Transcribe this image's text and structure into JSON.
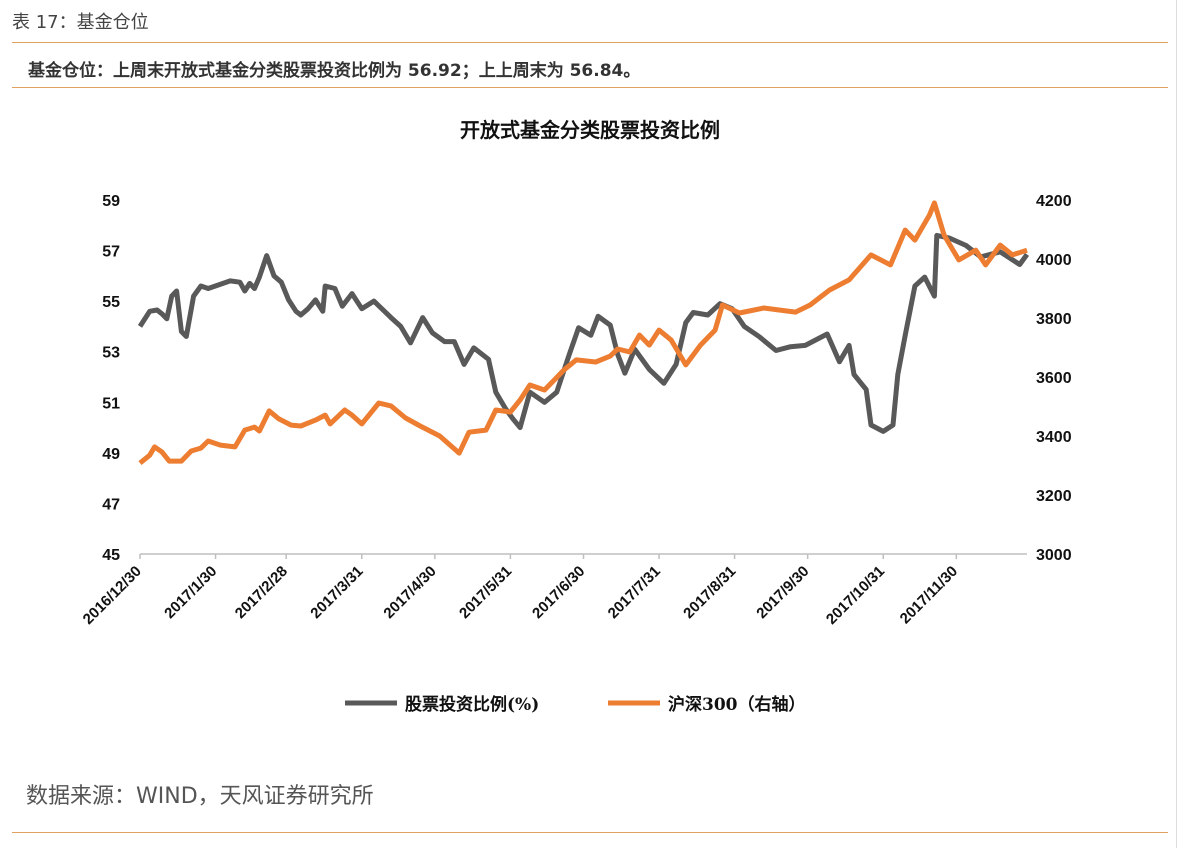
{
  "caption": "表 17：基金仓位",
  "summary": "基金仓位：上周末开放式基金分类股票投资比例为 56.92；上上周末为 56.84。",
  "source": "数据来源：WIND，天风证券研究所",
  "chart_data": {
    "type": "line",
    "title": "开放式基金分类股票投资比例",
    "x_tick_labels": [
      "2016/12/30",
      "2017/1/30",
      "2017/2/28",
      "2017/3/31",
      "2017/4/30",
      "2017/5/31",
      "2017/6/30",
      "2017/7/31",
      "2017/8/31",
      "2017/9/30",
      "2017/10/31",
      "2017/11/30"
    ],
    "xlim": [
      "2016-12-30",
      "2017-12-29"
    ],
    "y_left": {
      "ylim": [
        45,
        59
      ],
      "ticks": [
        45,
        47,
        49,
        51,
        53,
        55,
        57,
        59
      ]
    },
    "y_right": {
      "ylim": [
        3000,
        4200
      ],
      "ticks": [
        3000,
        3200,
        3400,
        3600,
        3800,
        4000,
        4200
      ]
    },
    "grid": false,
    "legend": "bottom",
    "series": [
      {
        "name": "股票投资比例(%)",
        "axis": "left",
        "color": "#595959",
        "points": [
          [
            "2016-12-30",
            54.0
          ],
          [
            "2017-01-03",
            54.6
          ],
          [
            "2017-01-06",
            54.65
          ],
          [
            "2017-01-08",
            54.5
          ],
          [
            "2017-01-10",
            54.3
          ],
          [
            "2017-01-12",
            55.2
          ],
          [
            "2017-01-14",
            55.4
          ],
          [
            "2017-01-16",
            53.8
          ],
          [
            "2017-01-18",
            53.6
          ],
          [
            "2017-01-21",
            55.2
          ],
          [
            "2017-01-24",
            55.6
          ],
          [
            "2017-01-27",
            55.5
          ],
          [
            "2017-02-05",
            55.8
          ],
          [
            "2017-02-09",
            55.75
          ],
          [
            "2017-02-11",
            55.4
          ],
          [
            "2017-02-13",
            55.7
          ],
          [
            "2017-02-15",
            55.5
          ],
          [
            "2017-02-17",
            55.95
          ],
          [
            "2017-02-20",
            56.8
          ],
          [
            "2017-02-23",
            56.0
          ],
          [
            "2017-02-26",
            55.75
          ],
          [
            "2017-03-01",
            55.05
          ],
          [
            "2017-03-04",
            54.6
          ],
          [
            "2017-03-06",
            54.45
          ],
          [
            "2017-03-09",
            54.7
          ],
          [
            "2017-03-12",
            55.05
          ],
          [
            "2017-03-15",
            54.6
          ],
          [
            "2017-03-16",
            55.6
          ],
          [
            "2017-03-20",
            55.5
          ],
          [
            "2017-03-23",
            54.8
          ],
          [
            "2017-03-27",
            55.3
          ],
          [
            "2017-03-31",
            54.7
          ],
          [
            "2017-04-05",
            55.0
          ],
          [
            "2017-04-12",
            54.35
          ],
          [
            "2017-04-16",
            54.0
          ],
          [
            "2017-04-20",
            53.35
          ],
          [
            "2017-04-25",
            54.35
          ],
          [
            "2017-04-29",
            53.75
          ],
          [
            "2017-05-04",
            53.4
          ],
          [
            "2017-05-08",
            53.4
          ],
          [
            "2017-05-12",
            52.5
          ],
          [
            "2017-05-16",
            53.15
          ],
          [
            "2017-05-22",
            52.7
          ],
          [
            "2017-05-25",
            51.4
          ],
          [
            "2017-05-29",
            50.75
          ],
          [
            "2017-06-01",
            50.35
          ],
          [
            "2017-06-04",
            50.0
          ],
          [
            "2017-06-08",
            51.4
          ],
          [
            "2017-06-14",
            51.0
          ],
          [
            "2017-06-19",
            51.4
          ],
          [
            "2017-06-24",
            52.85
          ],
          [
            "2017-06-28",
            53.95
          ],
          [
            "2017-07-03",
            53.65
          ],
          [
            "2017-07-06",
            54.4
          ],
          [
            "2017-07-11",
            54.05
          ],
          [
            "2017-07-14",
            52.9
          ],
          [
            "2017-07-17",
            52.15
          ],
          [
            "2017-07-21",
            53.1
          ],
          [
            "2017-07-27",
            52.3
          ],
          [
            "2017-08-02",
            51.75
          ],
          [
            "2017-08-07",
            52.5
          ],
          [
            "2017-08-11",
            54.15
          ],
          [
            "2017-08-14",
            54.55
          ],
          [
            "2017-08-20",
            54.45
          ],
          [
            "2017-08-25",
            54.9
          ],
          [
            "2017-08-30",
            54.7
          ],
          [
            "2017-09-04",
            54.0
          ],
          [
            "2017-09-10",
            53.6
          ],
          [
            "2017-09-17",
            53.05
          ],
          [
            "2017-09-23",
            53.2
          ],
          [
            "2017-09-29",
            53.25
          ],
          [
            "2017-10-08",
            53.7
          ],
          [
            "2017-10-13",
            52.6
          ],
          [
            "2017-10-17",
            53.25
          ],
          [
            "2017-10-19",
            52.1
          ],
          [
            "2017-10-24",
            51.5
          ],
          [
            "2017-10-26",
            50.1
          ],
          [
            "2017-10-31",
            49.85
          ],
          [
            "2017-11-04",
            50.1
          ],
          [
            "2017-11-06",
            52.1
          ],
          [
            "2017-11-09",
            53.65
          ],
          [
            "2017-11-13",
            55.6
          ],
          [
            "2017-11-17",
            55.95
          ],
          [
            "2017-11-21",
            55.2
          ],
          [
            "2017-11-22",
            57.6
          ],
          [
            "2017-11-27",
            57.5
          ],
          [
            "2017-12-04",
            57.2
          ],
          [
            "2017-12-10",
            56.75
          ],
          [
            "2017-12-18",
            56.95
          ],
          [
            "2017-12-26",
            56.45
          ],
          [
            "2017-12-29",
            56.85
          ]
        ]
      },
      {
        "name": "沪深300（右轴）",
        "axis": "right",
        "color": "#ED7D31",
        "points": [
          [
            "2016-12-30",
            3308
          ],
          [
            "2017-01-03",
            3335
          ],
          [
            "2017-01-05",
            3363
          ],
          [
            "2017-01-08",
            3346
          ],
          [
            "2017-01-11",
            3315
          ],
          [
            "2017-01-16",
            3315
          ],
          [
            "2017-01-20",
            3349
          ],
          [
            "2017-01-24",
            3359
          ],
          [
            "2017-01-27",
            3383
          ],
          [
            "2017-02-01",
            3369
          ],
          [
            "2017-02-07",
            3363
          ],
          [
            "2017-02-11",
            3420
          ],
          [
            "2017-02-15",
            3430
          ],
          [
            "2017-02-17",
            3417
          ],
          [
            "2017-02-21",
            3485
          ],
          [
            "2017-02-25",
            3458
          ],
          [
            "2017-03-02",
            3437
          ],
          [
            "2017-03-06",
            3434
          ],
          [
            "2017-03-12",
            3454
          ],
          [
            "2017-03-16",
            3471
          ],
          [
            "2017-03-18",
            3441
          ],
          [
            "2017-03-24",
            3488
          ],
          [
            "2017-03-27",
            3471
          ],
          [
            "2017-03-31",
            3441
          ],
          [
            "2017-04-07",
            3512
          ],
          [
            "2017-04-12",
            3502
          ],
          [
            "2017-04-18",
            3461
          ],
          [
            "2017-04-24",
            3434
          ],
          [
            "2017-05-02",
            3400
          ],
          [
            "2017-05-10",
            3342
          ],
          [
            "2017-05-14",
            3413
          ],
          [
            "2017-05-21",
            3420
          ],
          [
            "2017-05-25",
            3488
          ],
          [
            "2017-05-31",
            3481
          ],
          [
            "2017-06-04",
            3522
          ],
          [
            "2017-06-08",
            3573
          ],
          [
            "2017-06-14",
            3556
          ],
          [
            "2017-06-18",
            3590
          ],
          [
            "2017-06-22",
            3624
          ],
          [
            "2017-06-27",
            3658
          ],
          [
            "2017-07-05",
            3651
          ],
          [
            "2017-07-11",
            3671
          ],
          [
            "2017-07-14",
            3695
          ],
          [
            "2017-07-19",
            3685
          ],
          [
            "2017-07-23",
            3742
          ],
          [
            "2017-07-27",
            3708
          ],
          [
            "2017-07-31",
            3759
          ],
          [
            "2017-08-05",
            3725
          ],
          [
            "2017-08-11",
            3641
          ],
          [
            "2017-08-17",
            3708
          ],
          [
            "2017-08-23",
            3759
          ],
          [
            "2017-08-26",
            3844
          ],
          [
            "2017-09-02",
            3817
          ],
          [
            "2017-09-12",
            3834
          ],
          [
            "2017-09-25",
            3820
          ],
          [
            "2017-10-01",
            3844
          ],
          [
            "2017-10-09",
            3895
          ],
          [
            "2017-10-17",
            3929
          ],
          [
            "2017-10-26",
            4014
          ],
          [
            "2017-11-03",
            3980
          ],
          [
            "2017-11-09",
            4098
          ],
          [
            "2017-11-13",
            4064
          ],
          [
            "2017-11-19",
            4149
          ],
          [
            "2017-11-21",
            4190
          ],
          [
            "2017-11-25",
            4081
          ],
          [
            "2017-12-01",
            3997
          ],
          [
            "2017-12-08",
            4030
          ],
          [
            "2017-12-12",
            3980
          ],
          [
            "2017-12-18",
            4047
          ],
          [
            "2017-12-23",
            4014
          ],
          [
            "2017-12-29",
            4030
          ]
        ]
      }
    ]
  }
}
